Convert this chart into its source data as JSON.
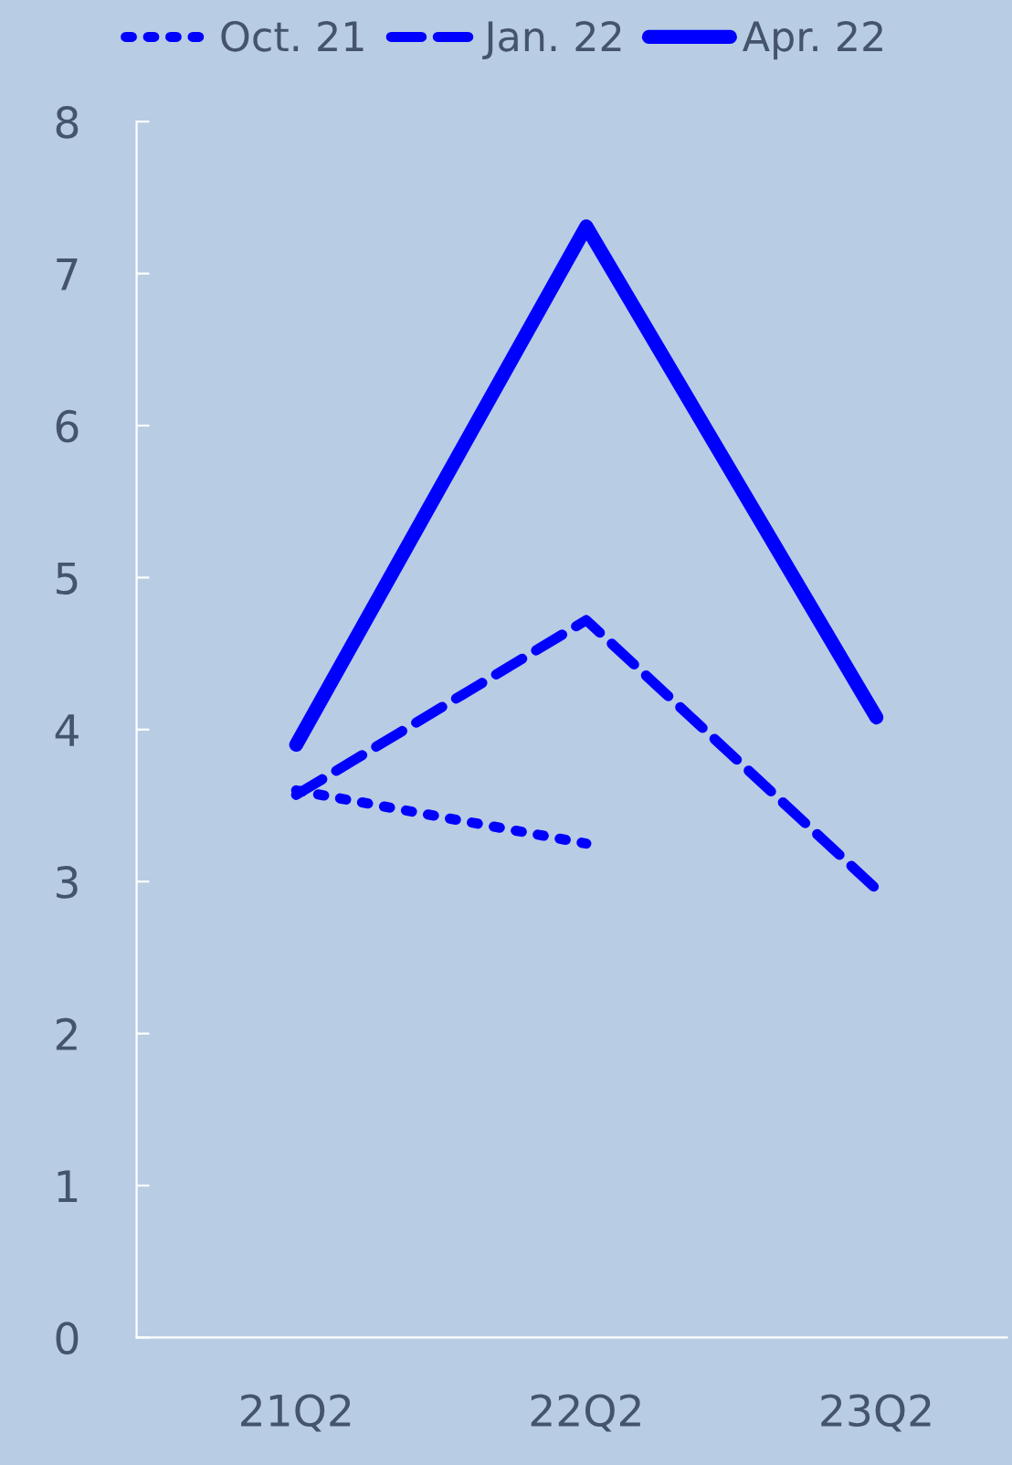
{
  "chart_data": {
    "type": "line",
    "categories": [
      "21Q2",
      "22Q2",
      "23Q2"
    ],
    "series": [
      {
        "name": "Oct. 21",
        "color": "#0000ff",
        "line_style": "dotted",
        "values": [
          3.6,
          3.25,
          null
        ]
      },
      {
        "name": "Jan. 22",
        "color": "#0000ff",
        "line_style": "dashed",
        "values": [
          3.57,
          4.72,
          2.95
        ]
      },
      {
        "name": "Apr. 22",
        "color": "#0000ff",
        "line_style": "solid",
        "values": [
          3.9,
          7.31,
          4.08
        ]
      }
    ],
    "ylim": [
      0,
      8
    ],
    "yticks": [
      0,
      1,
      2,
      3,
      4,
      5,
      6,
      7,
      8
    ],
    "grid": false,
    "legend": "top",
    "marker": "none"
  }
}
